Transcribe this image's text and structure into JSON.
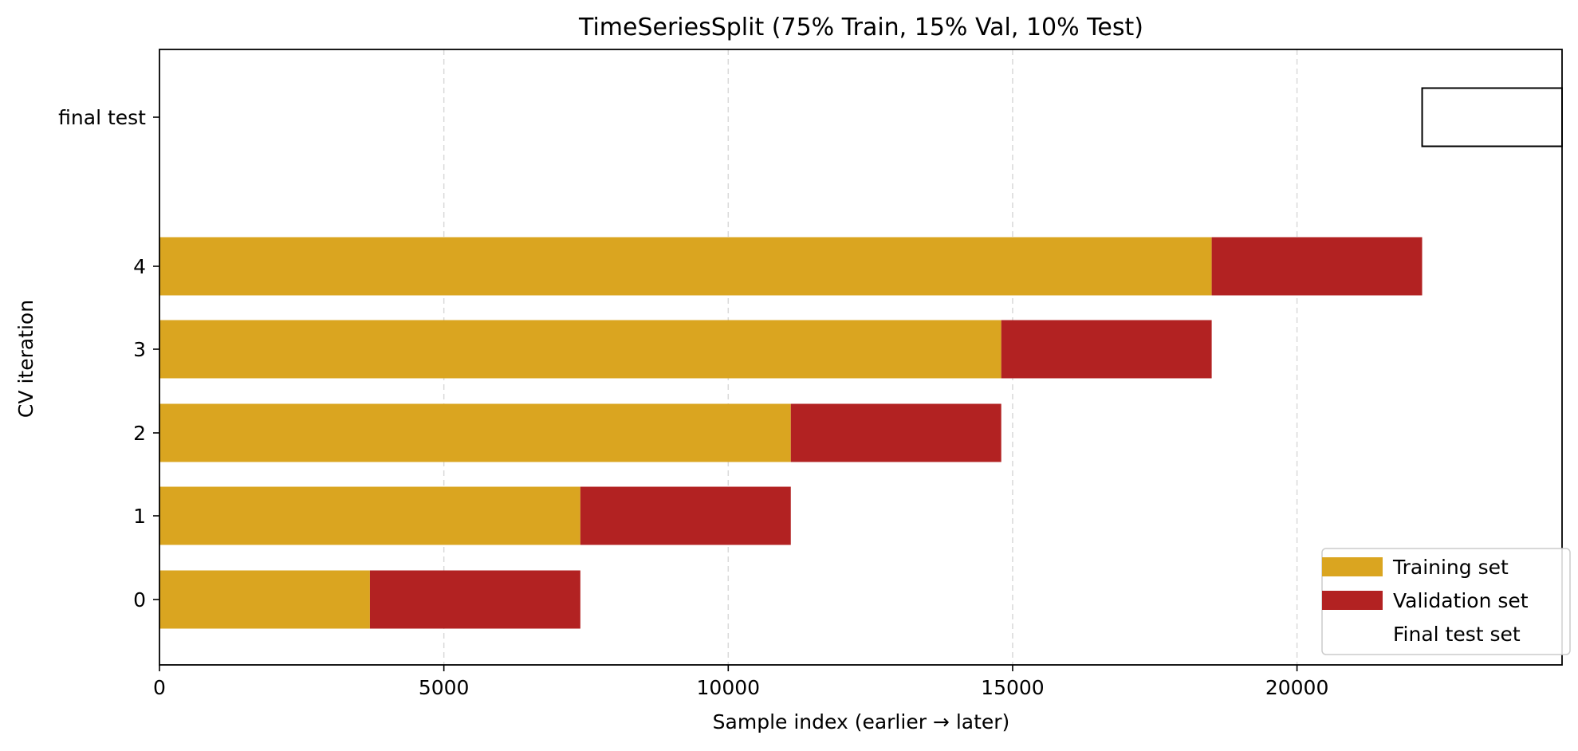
{
  "chart_data": {
    "type": "bar",
    "orientation": "horizontal",
    "title": "TimeSeriesSplit (75% Train, 15% Val, 10% Test)",
    "xlabel": "Sample index (earlier → later)",
    "ylabel": "CV iteration",
    "xlim": [
      0,
      24660
    ],
    "x_ticks": [
      0,
      5000,
      10000,
      15000,
      20000
    ],
    "y_ticks": [
      "0",
      "1",
      "2",
      "3",
      "4",
      "final test"
    ],
    "grid": "x-dashed",
    "legend_position": "bottom-right",
    "colors": {
      "train": "#DAA520",
      "val": "#B22222",
      "test_edge": "#000000"
    },
    "series": [
      {
        "name": "Training set",
        "key": "train"
      },
      {
        "name": "Validation set",
        "key": "val"
      },
      {
        "name": "Final test set",
        "key": "test"
      }
    ],
    "folds": [
      {
        "label": "0",
        "train": [
          0,
          3700
        ],
        "val": [
          3700,
          7400
        ]
      },
      {
        "label": "1",
        "train": [
          0,
          7400
        ],
        "val": [
          7400,
          11100
        ]
      },
      {
        "label": "2",
        "train": [
          0,
          11100
        ],
        "val": [
          11100,
          14800
        ]
      },
      {
        "label": "3",
        "train": [
          0,
          14800
        ],
        "val": [
          14800,
          18500
        ]
      },
      {
        "label": "4",
        "train": [
          0,
          18500
        ],
        "val": [
          18500,
          22200
        ]
      }
    ],
    "final_test": {
      "label": "final test",
      "range": [
        22200,
        24660
      ]
    }
  }
}
